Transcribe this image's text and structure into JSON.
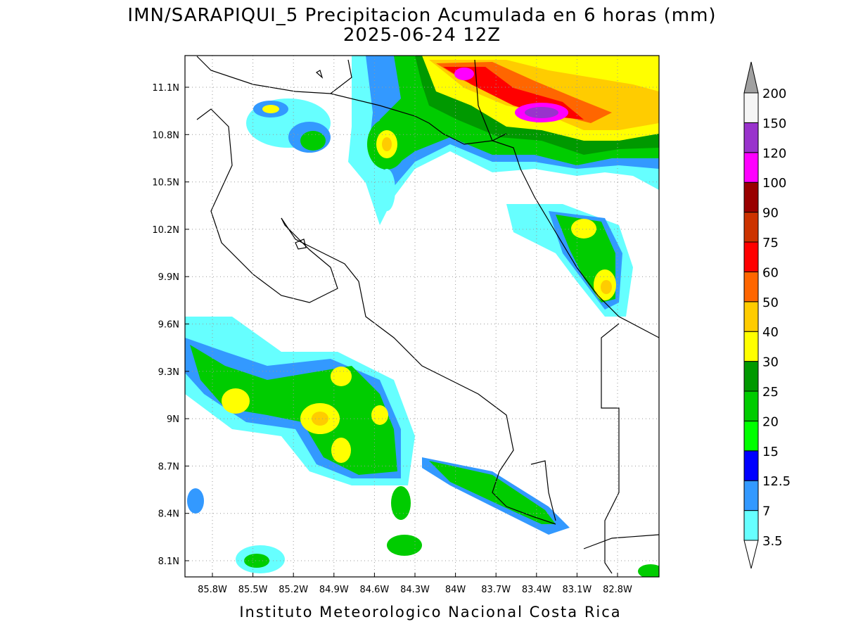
{
  "map": {
    "title": "IMN/SARAPIQUI_5 Precipitacion Acumulada en 6 horas (mm)",
    "subtitle": "2025-06-24 12Z",
    "footer": "Instituto Meteorologico Nacional Costa Rica",
    "lat_ticks": [
      {
        "value": 11.1,
        "label": "11.1N"
      },
      {
        "value": 10.8,
        "label": "10.8N"
      },
      {
        "value": 10.5,
        "label": "10.5N"
      },
      {
        "value": 10.2,
        "label": "10.2N"
      },
      {
        "value": 9.9,
        "label": "9.9N"
      },
      {
        "value": 9.6,
        "label": "9.6N"
      },
      {
        "value": 9.3,
        "label": "9.3N"
      },
      {
        "value": 9,
        "label": "9N"
      },
      {
        "value": 8.7,
        "label": "8.7N"
      },
      {
        "value": 8.4,
        "label": "8.4N"
      },
      {
        "value": 8.1,
        "label": "8.1N"
      }
    ],
    "lon_ticks": [
      {
        "value": -85.8,
        "label": "85.8W"
      },
      {
        "value": -85.5,
        "label": "85.5W"
      },
      {
        "value": -85.2,
        "label": "85.2W"
      },
      {
        "value": -84.9,
        "label": "84.9W"
      },
      {
        "value": -84.6,
        "label": "84.6W"
      },
      {
        "value": -84.3,
        "label": "84.3W"
      },
      {
        "value": -84,
        "label": "84W"
      },
      {
        "value": -83.7,
        "label": "83.7W"
      },
      {
        "value": -83.4,
        "label": "83.4W"
      },
      {
        "value": -83.1,
        "label": "83.1W"
      },
      {
        "value": -82.8,
        "label": "82.8W"
      }
    ],
    "colorbar": {
      "levels": [
        3.5,
        7,
        12.5,
        15,
        20,
        25,
        30,
        40,
        50,
        60,
        75,
        90,
        100,
        120,
        150,
        200
      ],
      "colors": [
        "#ffffff",
        "#66ffff",
        "#3399ff",
        "#0000ff",
        "#00ff00",
        "#00cc00",
        "#009900",
        "#ffff00",
        "#ffcc00",
        "#ff6600",
        "#ff0000",
        "#cc3300",
        "#990000",
        "#ff00ff",
        "#9933cc",
        "#f5f5f5",
        "#a0a0a0"
      ]
    }
  }
}
